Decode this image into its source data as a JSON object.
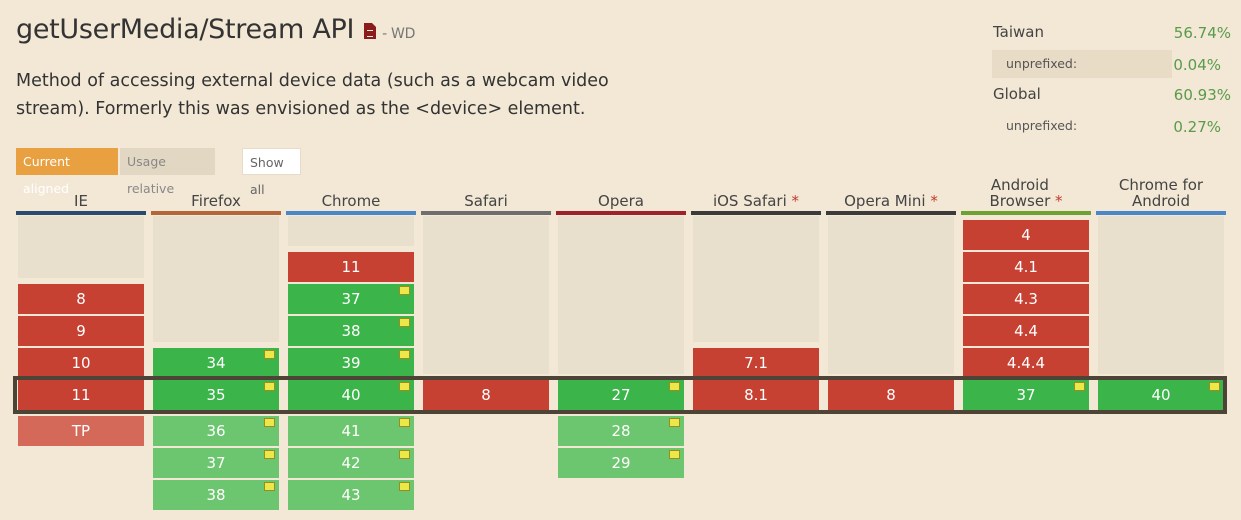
{
  "feature": {
    "title": "getUserMedia/Stream API",
    "status": "- WD",
    "description": "Method of accessing external device data (such as a webcam video stream). Formerly this was envisioned as the <device> element."
  },
  "stats": [
    {
      "label": "Taiwan",
      "value": "56.74%",
      "sub": false
    },
    {
      "label": "unprefixed:",
      "value": "0.04%",
      "sub": true
    },
    {
      "label": "Global",
      "value": "60.93%",
      "sub": false
    },
    {
      "label": "unprefixed:",
      "value": "0.27%",
      "sub": true
    }
  ],
  "view_buttons": {
    "current": "Current aligned",
    "usage": "Usage relative",
    "show_all": "Show all"
  },
  "colors": {
    "no": "#c64132",
    "yes": "#3bb54a",
    "future_yes": "#6cc56f",
    "future_no": "#d4695a",
    "prefix_flag": "#ede84a"
  },
  "browsers": [
    {
      "name": "IE",
      "star": false,
      "bar": "#2a4a70",
      "pad": 2,
      "past": [
        {
          "v": "8",
          "s": "n"
        },
        {
          "v": "9",
          "s": "n"
        },
        {
          "v": "10",
          "s": "n"
        }
      ],
      "current": {
        "v": "11",
        "s": "n"
      },
      "future": [
        {
          "v": "TP",
          "s": "fn"
        }
      ]
    },
    {
      "name": "Firefox",
      "star": false,
      "bar": "#b2663a",
      "pad": 4,
      "past": [
        {
          "v": "34",
          "s": "y",
          "p": true
        }
      ],
      "current": {
        "v": "35",
        "s": "y",
        "p": true
      },
      "future": [
        {
          "v": "36",
          "s": "fy",
          "p": true
        },
        {
          "v": "37",
          "s": "fy",
          "p": true
        },
        {
          "v": "38",
          "s": "fy",
          "p": true
        }
      ]
    },
    {
      "name": "Chrome",
      "star": false,
      "bar": "#4a86c8",
      "pad": 1,
      "past": [
        {
          "v": "11",
          "s": "n"
        },
        {
          "v": "37",
          "s": "y",
          "p": true
        },
        {
          "v": "38",
          "s": "y",
          "p": true
        },
        {
          "v": "39",
          "s": "y",
          "p": true
        }
      ],
      "current": {
        "v": "40",
        "s": "y",
        "p": true
      },
      "future": [
        {
          "v": "41",
          "s": "fy",
          "p": true
        },
        {
          "v": "42",
          "s": "fy",
          "p": true
        },
        {
          "v": "43",
          "s": "fy",
          "p": true
        }
      ]
    },
    {
      "name": "Safari",
      "star": false,
      "bar": "#6e6e6e",
      "pad": 5,
      "past": [],
      "current": {
        "v": "8",
        "s": "n"
      },
      "future": []
    },
    {
      "name": "Opera",
      "star": false,
      "bar": "#9e2229",
      "pad": 5,
      "past": [],
      "current": {
        "v": "27",
        "s": "y",
        "p": true
      },
      "future": [
        {
          "v": "28",
          "s": "fy",
          "p": true
        },
        {
          "v": "29",
          "s": "fy",
          "p": true
        }
      ]
    },
    {
      "name": "iOS Safari",
      "star": true,
      "bar": "#3b3b3b",
      "pad": 4,
      "past": [
        {
          "v": "7.1",
          "s": "n"
        }
      ],
      "current": {
        "v": "8.1",
        "s": "n"
      },
      "future": []
    },
    {
      "name": "Opera Mini",
      "star": true,
      "bar": "#3b3b3b",
      "pad": 5,
      "past": [],
      "current": {
        "v": "8",
        "s": "n"
      },
      "future": []
    },
    {
      "name": "Android Browser",
      "star": true,
      "bar": "#6ea033",
      "pad": 0,
      "past": [
        {
          "v": "4",
          "s": "n"
        },
        {
          "v": "4.1",
          "s": "n"
        },
        {
          "v": "4.3",
          "s": "n"
        },
        {
          "v": "4.4",
          "s": "n"
        },
        {
          "v": "4.4.4",
          "s": "n"
        }
      ],
      "current": {
        "v": "37",
        "s": "y",
        "p": true
      },
      "future": []
    },
    {
      "name": "Chrome for Android",
      "star": false,
      "bar": "#4a86c8",
      "pad": 5,
      "past": [],
      "current": {
        "v": "40",
        "s": "y",
        "p": true
      },
      "future": []
    }
  ]
}
